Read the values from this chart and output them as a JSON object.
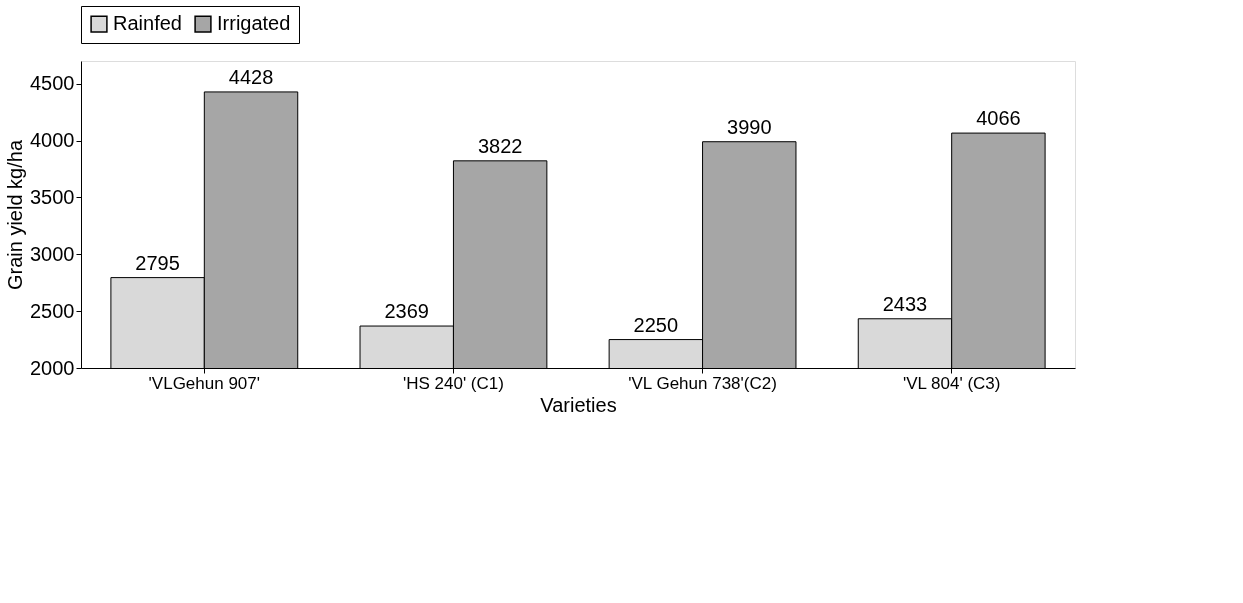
{
  "chart_data": {
    "type": "bar",
    "xlabel": "Varieties",
    "ylabel": "Grain yield  kg/ha",
    "categories": [
      "'VLGehun 907'",
      "'HS 240' (C1)",
      "'VL Gehun 738'(C2)",
      "'VL 804' (C3)"
    ],
    "series": [
      {
        "name": "Rainfed",
        "color": "#d9d9d9",
        "values": [
          2795,
          2369,
          2250,
          2433
        ]
      },
      {
        "name": "Irrigated",
        "color": "#a6a6a6",
        "values": [
          4428,
          3822,
          3990,
          4066
        ]
      }
    ],
    "ylim": [
      2000,
      4700
    ],
    "yticks": [
      2000,
      2500,
      3000,
      3500,
      4000,
      4500
    ],
    "grid": false,
    "legend": "top",
    "data_labels": true
  }
}
